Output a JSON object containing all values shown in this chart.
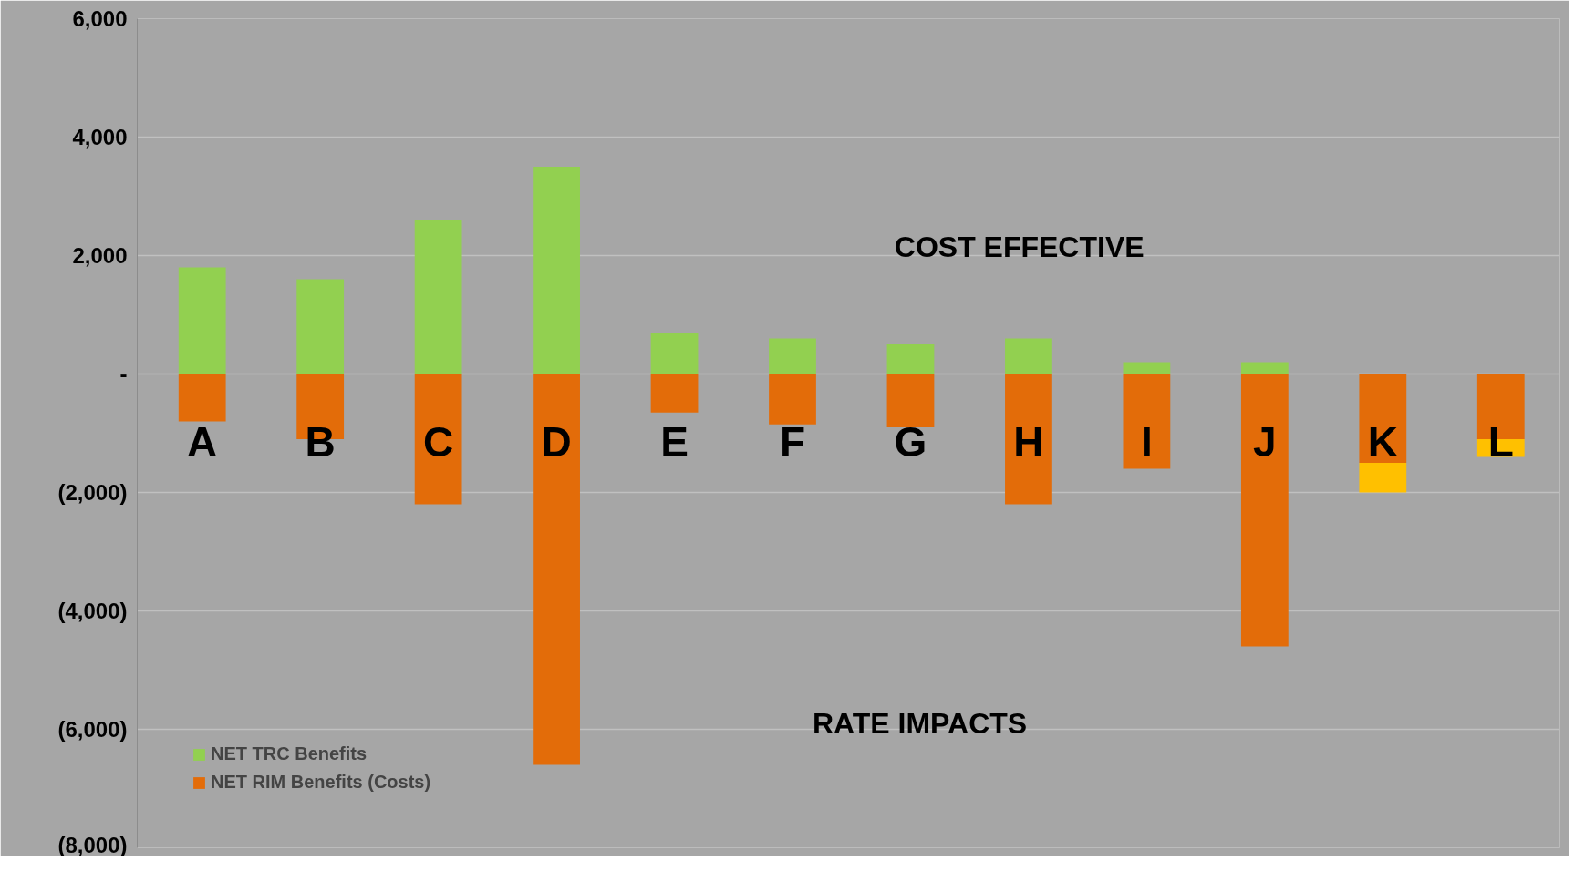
{
  "chart_data": {
    "type": "bar",
    "stacked": true,
    "categories": [
      "A",
      "B",
      "C",
      "D",
      "E",
      "F",
      "G",
      "H",
      "I",
      "J",
      "K",
      "L"
    ],
    "series": [
      {
        "name": "NET TRC Benefits",
        "color": "#92d050",
        "values": [
          1800,
          1600,
          2600,
          3500,
          700,
          600,
          500,
          600,
          200,
          200,
          0,
          0
        ]
      },
      {
        "name": "NET RIM Benefits (Costs)",
        "color": "#e36c09",
        "values": [
          -800,
          -1100,
          -2200,
          -6600,
          -650,
          -850,
          -900,
          -2200,
          -1600,
          -4600,
          -1500,
          -1100
        ]
      },
      {
        "color": "#ffc000",
        "values": [
          null,
          null,
          null,
          null,
          null,
          null,
          null,
          null,
          null,
          null,
          -500,
          -300
        ]
      }
    ],
    "ylim": [
      -8000,
      6000
    ],
    "yticks": [
      {
        "value": 6000,
        "label": "6,000"
      },
      {
        "value": 4000,
        "label": "4,000"
      },
      {
        "value": 2000,
        "label": "2,000"
      },
      {
        "value": 0,
        "label": "-"
      },
      {
        "value": -2000,
        "label": "(2,000)"
      },
      {
        "value": -4000,
        "label": "(4,000)"
      },
      {
        "value": -6000,
        "label": "(6,000)"
      },
      {
        "value": -8000,
        "label": "(8,000)"
      }
    ],
    "grid": "y",
    "legend": "bottom left",
    "annotations": [
      "COST EFFECTIVE",
      "RATE IMPACTS"
    ]
  }
}
